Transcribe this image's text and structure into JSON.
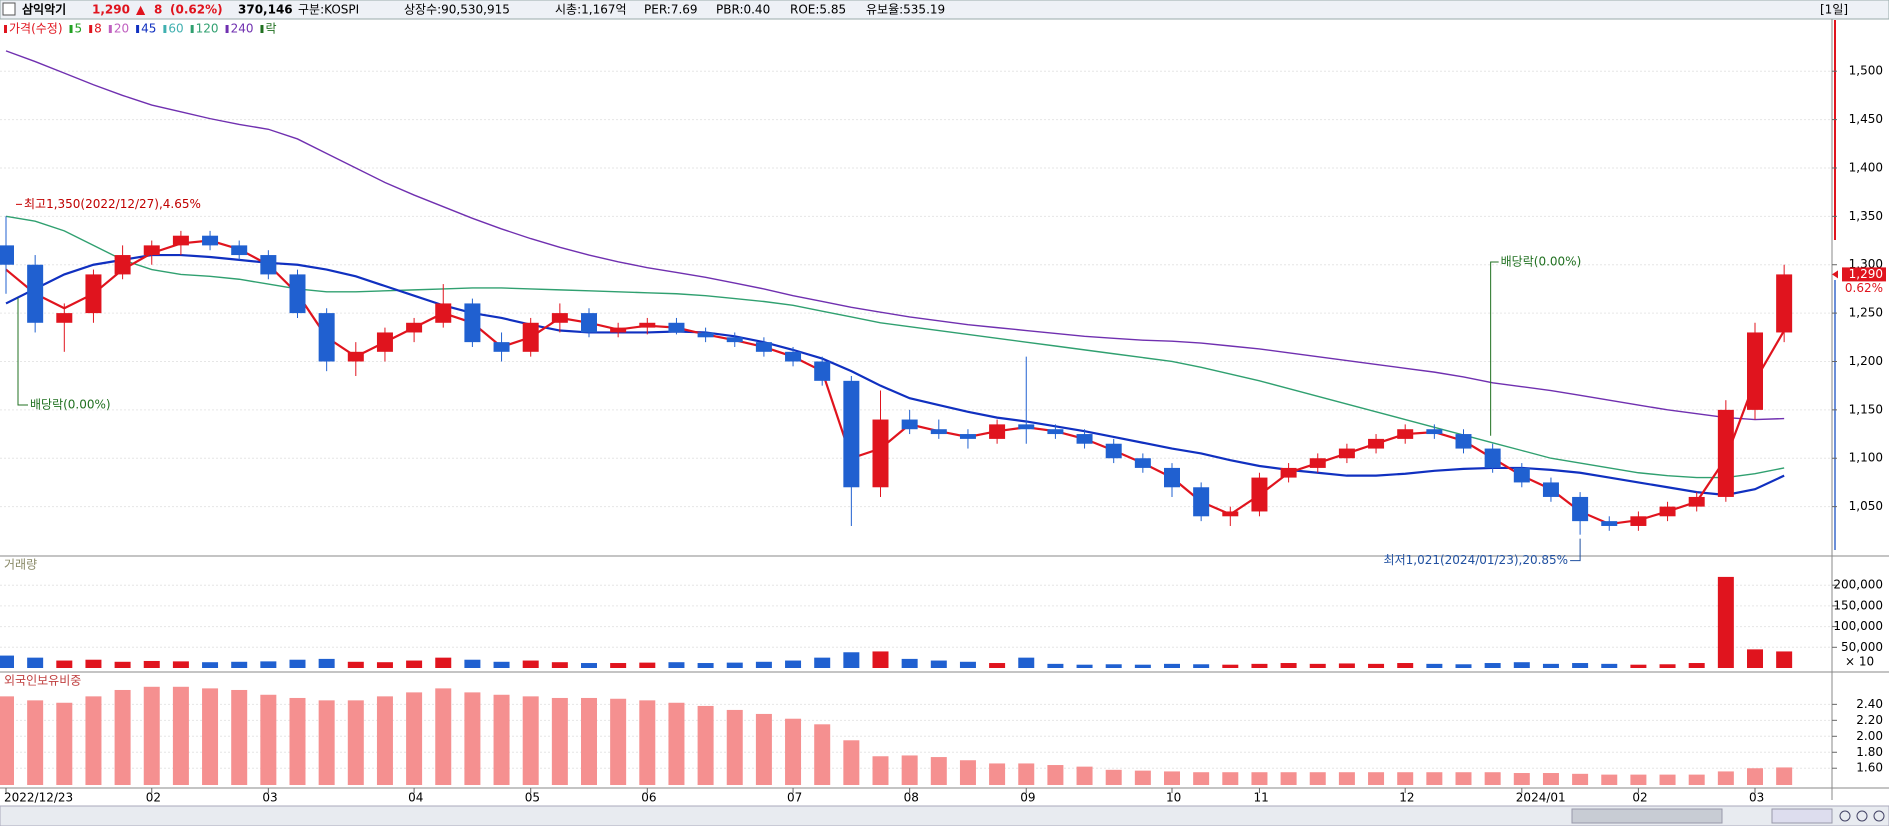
{
  "header": {
    "name": "삼익악기",
    "price": "1,290",
    "arrow": "▲",
    "change": "8",
    "change_pct": "(0.62%)",
    "volume": "370,146",
    "market": "구분:KOSPI",
    "shares": "상장수:90,530,915",
    "cap": "시총:1,167억",
    "per": "PER:7.69",
    "pbr": "PBR:0.40",
    "roe": "ROE:5.85",
    "reserve": "유보율:535.19",
    "period": "[1일]"
  },
  "chart_data": [
    {
      "type": "candlestick",
      "legend": [
        {
          "label": "가격(수정)",
          "color": "#e0141e"
        },
        {
          "label": "5",
          "color": "#22a022"
        },
        {
          "label": "8",
          "color": "#e0141e"
        },
        {
          "label": "20",
          "color": "#c060c0"
        },
        {
          "label": "45",
          "color": "#1030c0"
        },
        {
          "label": "60",
          "color": "#40b0b0"
        },
        {
          "label": "120",
          "color": "#30a070"
        },
        {
          "label": "240",
          "color": "#7030b0"
        },
        {
          "label": "락",
          "color": "#207020"
        }
      ],
      "categories": [
        "2022/12/23",
        null,
        null,
        null,
        null,
        "02",
        null,
        null,
        null,
        "03",
        null,
        null,
        null,
        null,
        "04",
        null,
        null,
        null,
        "05",
        null,
        null,
        null,
        "06",
        null,
        null,
        null,
        null,
        "07",
        null,
        null,
        null,
        "08",
        null,
        null,
        null,
        "09",
        null,
        null,
        null,
        null,
        "10",
        null,
        null,
        "11",
        null,
        null,
        null,
        null,
        "12",
        null,
        null,
        null,
        "2024/01",
        null,
        null,
        null,
        "02",
        null,
        null,
        null,
        "03",
        null
      ],
      "open": [
        1320,
        1300,
        1240,
        1250,
        1290,
        1310,
        1320,
        1330,
        1320,
        1310,
        1290,
        1250,
        1200,
        1210,
        1230,
        1240,
        1260,
        1220,
        1210,
        1240,
        1250,
        1230,
        1235,
        1240,
        1230,
        1225,
        1220,
        1210,
        1200,
        1180,
        1070,
        1140,
        1130,
        1125,
        1120,
        1135,
        1130,
        1125,
        1115,
        1100,
        1090,
        1070,
        1040,
        1045,
        1080,
        1090,
        1100,
        1110,
        1120,
        1130,
        1125,
        1110,
        1090,
        1075,
        1060,
        1035,
        1030,
        1040,
        1050,
        1060,
        1150,
        1230
      ],
      "high": [
        1350,
        1310,
        1260,
        1295,
        1320,
        1325,
        1335,
        1335,
        1325,
        1315,
        1295,
        1255,
        1220,
        1235,
        1245,
        1280,
        1265,
        1230,
        1245,
        1260,
        1255,
        1240,
        1245,
        1245,
        1235,
        1230,
        1225,
        1215,
        1205,
        1185,
        1170,
        1150,
        1140,
        1130,
        1140,
        1205,
        1135,
        1130,
        1120,
        1105,
        1095,
        1075,
        1050,
        1085,
        1095,
        1105,
        1115,
        1125,
        1135,
        1135,
        1130,
        1115,
        1095,
        1080,
        1065,
        1040,
        1045,
        1055,
        1065,
        1160,
        1240,
        1300
      ],
      "low": [
        1270,
        1230,
        1210,
        1240,
        1285,
        1300,
        1310,
        1315,
        1305,
        1285,
        1245,
        1190,
        1185,
        1200,
        1220,
        1235,
        1215,
        1200,
        1205,
        1230,
        1225,
        1225,
        1228,
        1228,
        1220,
        1215,
        1205,
        1195,
        1175,
        1030,
        1060,
        1125,
        1120,
        1110,
        1115,
        1115,
        1120,
        1110,
        1095,
        1085,
        1060,
        1035,
        1030,
        1040,
        1075,
        1085,
        1095,
        1105,
        1115,
        1120,
        1105,
        1085,
        1070,
        1055,
        1021,
        1025,
        1025,
        1035,
        1045,
        1055,
        1140,
        1220
      ],
      "close": [
        1300,
        1240,
        1250,
        1290,
        1310,
        1320,
        1330,
        1320,
        1310,
        1290,
        1250,
        1200,
        1210,
        1230,
        1240,
        1260,
        1220,
        1210,
        1240,
        1250,
        1230,
        1235,
        1240,
        1230,
        1225,
        1220,
        1210,
        1200,
        1180,
        1070,
        1140,
        1130,
        1125,
        1120,
        1135,
        1130,
        1125,
        1115,
        1100,
        1090,
        1070,
        1040,
        1045,
        1080,
        1090,
        1100,
        1110,
        1120,
        1130,
        1125,
        1110,
        1090,
        1075,
        1060,
        1035,
        1030,
        1040,
        1050,
        1060,
        1150,
        1230,
        1290
      ],
      "lines": [
        {
          "color": "#7030b0",
          "values": [
            1521,
            1510,
            1498,
            1486,
            1475,
            1465,
            1458,
            1451,
            1445,
            1440,
            1430,
            1415,
            1400,
            1385,
            1372,
            1360,
            1348,
            1337,
            1327,
            1318,
            1310,
            1303,
            1297,
            1292,
            1287,
            1281,
            1275,
            1268,
            1262,
            1256,
            1251,
            1246,
            1242,
            1238,
            1235,
            1232,
            1229,
            1226,
            1224,
            1222,
            1221,
            1219,
            1216,
            1213,
            1209,
            1205,
            1201,
            1197,
            1193,
            1189,
            1184,
            1178,
            1174,
            1170,
            1165,
            1160,
            1155,
            1150,
            1146,
            1142,
            1140,
            1141
          ]
        },
        {
          "color": "#30a070",
          "values": [
            1350,
            1345,
            1335,
            1320,
            1305,
            1295,
            1290,
            1288,
            1285,
            1280,
            1275,
            1272,
            1272,
            1273,
            1274,
            1275,
            1276,
            1276,
            1275,
            1274,
            1273,
            1272,
            1271,
            1270,
            1268,
            1265,
            1262,
            1258,
            1252,
            1246,
            1240,
            1236,
            1232,
            1228,
            1224,
            1220,
            1216,
            1212,
            1208,
            1204,
            1200,
            1194,
            1187,
            1180,
            1172,
            1164,
            1156,
            1148,
            1140,
            1132,
            1124,
            1116,
            1108,
            1100,
            1095,
            1090,
            1085,
            1082,
            1080,
            1080,
            1084,
            1090
          ]
        },
        {
          "color": "#1030c0",
          "values": [
            1260,
            1275,
            1290,
            1300,
            1305,
            1310,
            1310,
            1308,
            1305,
            1302,
            1300,
            1295,
            1288,
            1278,
            1268,
            1258,
            1250,
            1245,
            1238,
            1232,
            1230,
            1230,
            1230,
            1231,
            1230,
            1226,
            1220,
            1212,
            1203,
            1190,
            1175,
            1162,
            1155,
            1148,
            1142,
            1138,
            1133,
            1128,
            1122,
            1116,
            1110,
            1105,
            1098,
            1092,
            1088,
            1085,
            1082,
            1082,
            1084,
            1087,
            1089,
            1090,
            1090,
            1088,
            1085,
            1080,
            1075,
            1070,
            1065,
            1062,
            1068,
            1082
          ]
        },
        {
          "color": "#e0141e",
          "values": [
            1295,
            1270,
            1255,
            1270,
            1295,
            1312,
            1322,
            1325,
            1316,
            1300,
            1270,
            1225,
            1205,
            1220,
            1235,
            1250,
            1240,
            1215,
            1225,
            1245,
            1240,
            1233,
            1237,
            1235,
            1228,
            1222,
            1215,
            1205,
            1190,
            1100,
            1110,
            1135,
            1128,
            1122,
            1128,
            1132,
            1128,
            1120,
            1108,
            1095,
            1080,
            1055,
            1042,
            1062,
            1085,
            1095,
            1105,
            1115,
            1125,
            1127,
            1118,
            1100,
            1082,
            1068,
            1045,
            1032,
            1036,
            1045,
            1055,
            1100,
            1180,
            1232
          ]
        }
      ],
      "ylim": [
        1000,
        1555
      ],
      "yticks": [
        {
          "value": 1050,
          "label": "1,050"
        },
        {
          "value": 1100,
          "label": "1,100"
        },
        {
          "value": 1150,
          "label": "1,150"
        },
        {
          "value": 1200,
          "label": "1,200"
        },
        {
          "value": 1250,
          "label": "1,250"
        },
        {
          "value": 1300,
          "label": "1,300"
        },
        {
          "value": 1350,
          "label": "1,350"
        },
        {
          "value": 1400,
          "label": "1,400"
        },
        {
          "value": 1450,
          "label": "1,450"
        },
        {
          "value": 1500,
          "label": "1,500"
        }
      ],
      "price_tag": "1,290",
      "price_tag_pct": "0.62%",
      "annotations": {
        "high": "최고1,350(2022/12/27),4.65%",
        "low": "최저1,021(2024/01/23),20.85%",
        "ex_div1": "배당락(0.00%)",
        "ex_div2": "배당락(0.00%)"
      },
      "up_color": "#e0141e",
      "down_color": "#2060d0"
    },
    {
      "type": "bar",
      "title": "거래량",
      "unit": "× 10",
      "values": [
        30000,
        25000,
        18000,
        20000,
        15000,
        17000,
        16000,
        14000,
        15000,
        16000,
        20000,
        22000,
        15000,
        14000,
        18000,
        25000,
        20000,
        15000,
        18000,
        14000,
        12000,
        12000,
        13000,
        14000,
        12000,
        13000,
        15000,
        18000,
        25000,
        38000,
        40000,
        22000,
        18000,
        15000,
        12000,
        25000,
        10000,
        8000,
        9000,
        8000,
        10000,
        9000,
        8000,
        10000,
        12000,
        10000,
        11000,
        10000,
        12000,
        10000,
        9000,
        12000,
        14000,
        10000,
        12000,
        10000,
        8000,
        9000,
        12000,
        220000,
        45000,
        40000
      ],
      "ylim": [
        0,
        256000
      ],
      "yticks": [
        {
          "value": 50000,
          "label": "50,000"
        },
        {
          "value": 100000,
          "label": "100,000"
        },
        {
          "value": 150000,
          "label": "150,000"
        },
        {
          "value": 200000,
          "label": "200,000"
        }
      ]
    },
    {
      "type": "bar",
      "title": "외국인보유비중",
      "color": "#f59090",
      "values": [
        2.5,
        2.45,
        2.42,
        2.5,
        2.58,
        2.62,
        2.62,
        2.6,
        2.58,
        2.52,
        2.48,
        2.45,
        2.45,
        2.5,
        2.55,
        2.6,
        2.55,
        2.52,
        2.5,
        2.48,
        2.48,
        2.47,
        2.45,
        2.42,
        2.38,
        2.33,
        2.28,
        2.22,
        2.15,
        1.95,
        1.75,
        1.76,
        1.74,
        1.7,
        1.66,
        1.66,
        1.64,
        1.62,
        1.58,
        1.57,
        1.56,
        1.55,
        1.55,
        1.55,
        1.55,
        1.55,
        1.55,
        1.55,
        1.55,
        1.55,
        1.55,
        1.55,
        1.54,
        1.54,
        1.53,
        1.52,
        1.52,
        1.52,
        1.52,
        1.56,
        1.6,
        1.61
      ],
      "ylim": [
        1.39,
        2.73
      ],
      "yticks": [
        {
          "value": 1.6,
          "label": "1.60"
        },
        {
          "value": 1.8,
          "label": "1.80"
        },
        {
          "value": 2.0,
          "label": "2.00"
        },
        {
          "value": 2.2,
          "label": "2.20"
        },
        {
          "value": 2.4,
          "label": "2.40"
        }
      ]
    }
  ]
}
